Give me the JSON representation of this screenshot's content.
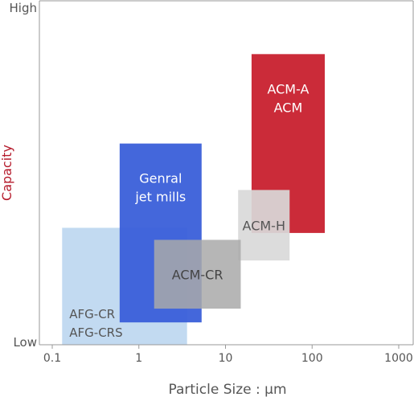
{
  "chart_data": {
    "type": "range-box",
    "xlabel": "Particle Size : μm",
    "ylabel": "Capacity",
    "x_scale": "log",
    "xlim": [
      0.1,
      1000
    ],
    "x_ticks": [
      {
        "value": 0.1,
        "label": "0.1"
      },
      {
        "value": 1,
        "label": "1"
      },
      {
        "value": 10,
        "label": "10"
      },
      {
        "value": 100,
        "label": "100"
      },
      {
        "value": 1000,
        "label": "1000"
      }
    ],
    "y_scale": "relative",
    "ylim": [
      0,
      1
    ],
    "y_ticks": [
      {
        "value": 0,
        "label": "Low"
      },
      {
        "value": 1,
        "label": "High"
      }
    ],
    "grid": false,
    "legend": "none",
    "colors": {
      "ylabel": "#b51a2b",
      "axis": "#999999",
      "text": "#555555"
    },
    "series": [
      {
        "labels": [
          "AFG-CR",
          "AFG-CRS"
        ],
        "x_range": [
          0.13,
          3.6
        ],
        "y_range": [
          0,
          0.34
        ],
        "color": "#b7d4ef",
        "opacity": 0.85,
        "label_color": "#555555",
        "label_pos": "bottom-left"
      },
      {
        "labels": [
          "Genral",
          "jet mills"
        ],
        "x_range": [
          0.6,
          5.3
        ],
        "y_range": [
          0.065,
          0.585
        ],
        "color": "#3a5fd9",
        "opacity": 0.95,
        "label_color": "#ffffff",
        "label_pos": "upper"
      },
      {
        "labels": [
          "ACM-A",
          "ACM"
        ],
        "x_range": [
          20,
          140
        ],
        "y_range": [
          0.325,
          0.845
        ],
        "color": "#c8202e",
        "opacity": 0.95,
        "label_color": "#ffffff",
        "label_pos": "upper"
      },
      {
        "labels": [
          "ACM-H"
        ],
        "x_range": [
          14,
          55
        ],
        "y_range": [
          0.245,
          0.45
        ],
        "color": "#d9d9d9",
        "opacity": 0.92,
        "label_color": "#555555",
        "label_pos": "center"
      },
      {
        "labels": [
          "ACM-CR"
        ],
        "x_range": [
          1.5,
          15
        ],
        "y_range": [
          0.105,
          0.305
        ],
        "color": "#a9a9a9",
        "opacity": 0.85,
        "label_color": "#444444",
        "label_pos": "center"
      }
    ]
  }
}
